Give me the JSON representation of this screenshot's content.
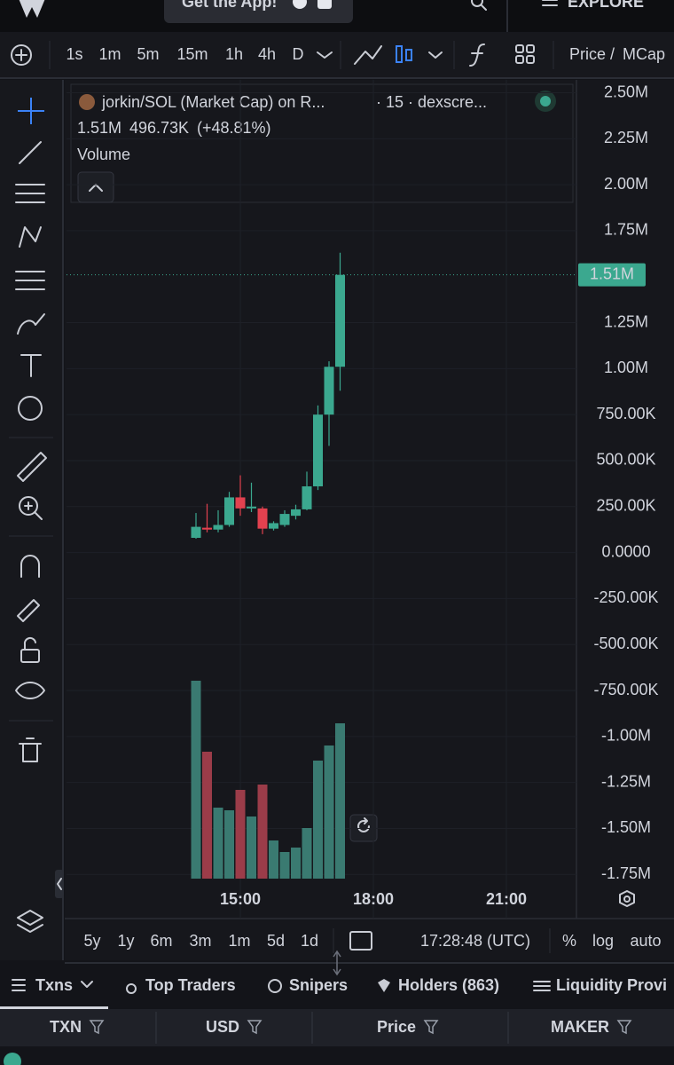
{
  "header": {
    "cta": "Get the App!",
    "explore": "EXPLORE"
  },
  "toolbar": {
    "intervals": [
      "1s",
      "1m",
      "5m",
      "15m",
      "1h",
      "4h",
      "D"
    ],
    "active_interval": "15m",
    "price": "Price /",
    "mcap": "MCap"
  },
  "chart_data": {
    "type": "candlestick",
    "title": "jorkin/SOL (Market Cap) on R...",
    "subtitle": "· 15 · dexscre...",
    "last_value": "1.51M",
    "change": "496.73K",
    "change_pct": "(+48.81%)",
    "volume_title": "Volume",
    "x": [
      14,
      14.25,
      14.5,
      14.75,
      15,
      15.25,
      15.5,
      15.75,
      16,
      16.25,
      16.5,
      16.75,
      17,
      17.25
    ],
    "open": [
      80000,
      135000,
      125000,
      150000,
      300000,
      240000,
      240000,
      130000,
      150000,
      200000,
      235000,
      360000,
      750000,
      1010000
    ],
    "high": [
      215000,
      265000,
      230000,
      330000,
      420000,
      380000,
      250000,
      170000,
      230000,
      260000,
      440000,
      800000,
      1040000,
      1630000
    ],
    "low": [
      75000,
      110000,
      110000,
      140000,
      200000,
      220000,
      100000,
      120000,
      140000,
      180000,
      230000,
      340000,
      580000,
      880000
    ],
    "close": [
      140000,
      125000,
      150000,
      300000,
      240000,
      250000,
      130000,
      160000,
      210000,
      235000,
      360000,
      750000,
      1010000,
      1510000
    ],
    "volume": [
      223,
      143,
      80,
      77,
      100,
      70,
      106,
      43,
      30,
      35,
      57,
      133,
      150,
      175
    ],
    "volume_lim": [
      0,
      230
    ],
    "up_color": "#3ba88f",
    "down_color": "#e2414f",
    "volume_up_color": "#3a7a71",
    "volume_down_color": "#9b3c49",
    "xlim": [
      11.08,
      22.58
    ],
    "xticks": [
      {
        "value": 15,
        "label": "15:00"
      },
      {
        "value": 18,
        "label": "18:00"
      },
      {
        "value": 21,
        "label": "21:00"
      }
    ],
    "ylim": [
      -1990000,
      2570000
    ],
    "yticks": [
      {
        "value": 2500000,
        "label": "2.50M"
      },
      {
        "value": 2250000,
        "label": "2.25M"
      },
      {
        "value": 2000000,
        "label": "2.00M"
      },
      {
        "value": 1750000,
        "label": "1.75M"
      },
      {
        "value": 1250000,
        "label": "1.25M"
      },
      {
        "value": 1000000,
        "label": "1.00M"
      },
      {
        "value": 750000,
        "label": "750.00K"
      },
      {
        "value": 500000,
        "label": "500.00K"
      },
      {
        "value": 250000,
        "label": "250.00K"
      },
      {
        "value": 0,
        "label": "0.0000"
      },
      {
        "value": -250000,
        "label": "-250.00K"
      },
      {
        "value": -500000,
        "label": "-500.00K"
      },
      {
        "value": -750000,
        "label": "-750.00K"
      },
      {
        "value": -1000000,
        "label": "-1.00M"
      },
      {
        "value": -1250000,
        "label": "-1.25M"
      },
      {
        "value": -1500000,
        "label": "-1.50M"
      },
      {
        "value": -1750000,
        "label": "-1.75M"
      }
    ],
    "last_price": {
      "value": 1510000,
      "label": "1.51M"
    },
    "grid": true
  },
  "range_bar": {
    "ranges": [
      "5y",
      "1y",
      "6m",
      "3m",
      "1m",
      "5d",
      "1d"
    ],
    "clock": "17:28:48 (UTC)",
    "percent": "%",
    "log": "log",
    "auto": "auto"
  },
  "tabs": [
    "Txns",
    "Top Traders",
    "Snipers",
    "Holders (863)",
    "Liquidity Provi"
  ],
  "table": {
    "columns": [
      "TXN",
      "USD",
      "Price",
      "MAKER"
    ]
  }
}
